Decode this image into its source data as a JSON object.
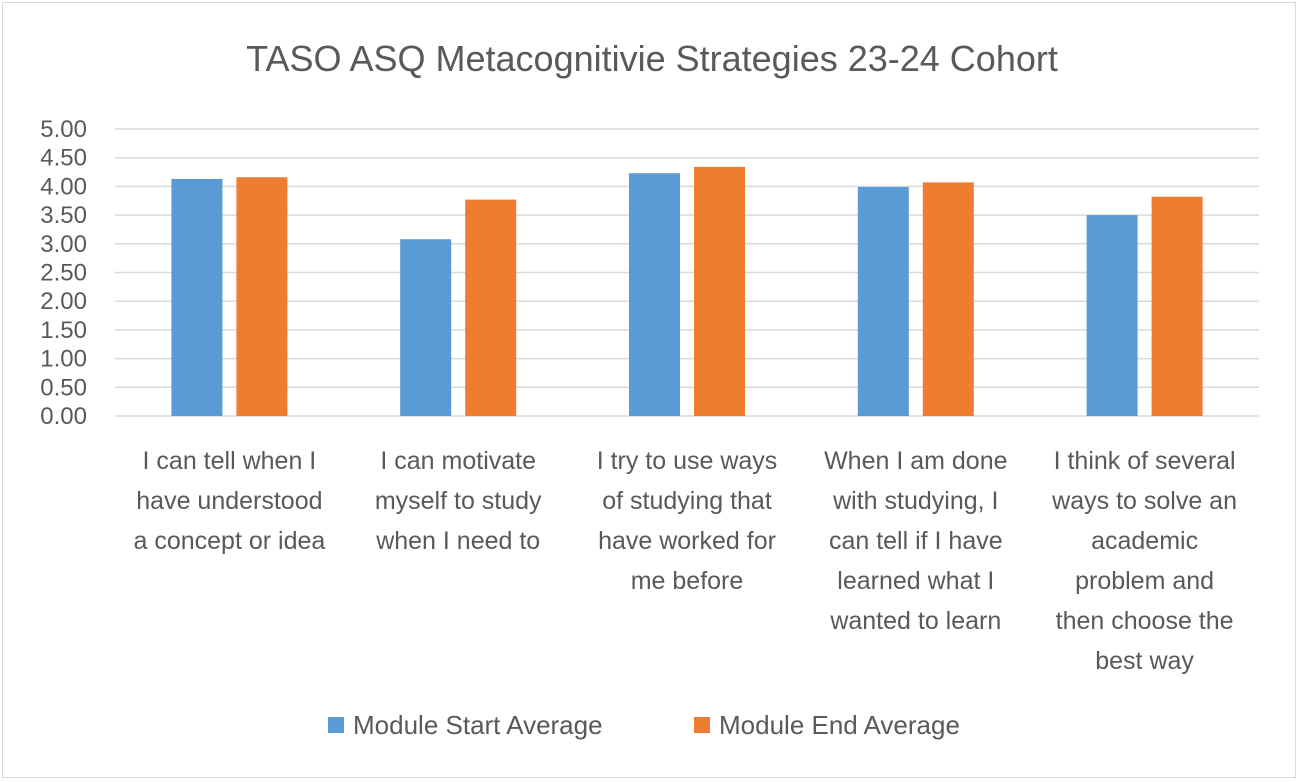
{
  "chart_data": {
    "type": "bar",
    "title": "TASO ASQ Metacognitivie Strategies 23-24 Cohort",
    "xlabel": "",
    "ylabel": "",
    "ylim": [
      0,
      5
    ],
    "ytick_step": 0.5,
    "yticks": [
      "0.00",
      "0.50",
      "1.00",
      "1.50",
      "2.00",
      "2.50",
      "3.00",
      "3.50",
      "4.00",
      "4.50",
      "5.00"
    ],
    "categories": [
      "I can tell when I have understood a concept or idea",
      "I can motivate myself to study when I need to",
      "I try to use ways of studying that have worked for me before",
      "When I am done with studying, I can tell if I have learned what I wanted to learn",
      "I think of several ways to solve an academic problem and then choose the best way"
    ],
    "category_lines": [
      [
        "I can tell when I",
        "have understood",
        "a concept or idea"
      ],
      [
        "I can motivate",
        "myself to study",
        "when I need to"
      ],
      [
        "I try to use ways",
        "of studying that",
        "have worked for",
        "me before"
      ],
      [
        "When I am done",
        "with studying, I",
        "can tell if I have",
        "learned what I",
        "wanted to learn"
      ],
      [
        "I think of several",
        "ways to solve an",
        "academic",
        "problem and",
        "then choose the",
        "best way"
      ]
    ],
    "series": [
      {
        "name": "Module Start Average",
        "color": "#5b9bd5",
        "values": [
          4.13,
          3.08,
          4.23,
          3.99,
          3.5
        ]
      },
      {
        "name": "Module End Average",
        "color": "#ed7d31",
        "values": [
          4.16,
          3.77,
          4.34,
          4.07,
          3.82
        ]
      }
    ],
    "grid": true,
    "gridline_color": "#d9d9d9",
    "legend_position": "bottom"
  }
}
